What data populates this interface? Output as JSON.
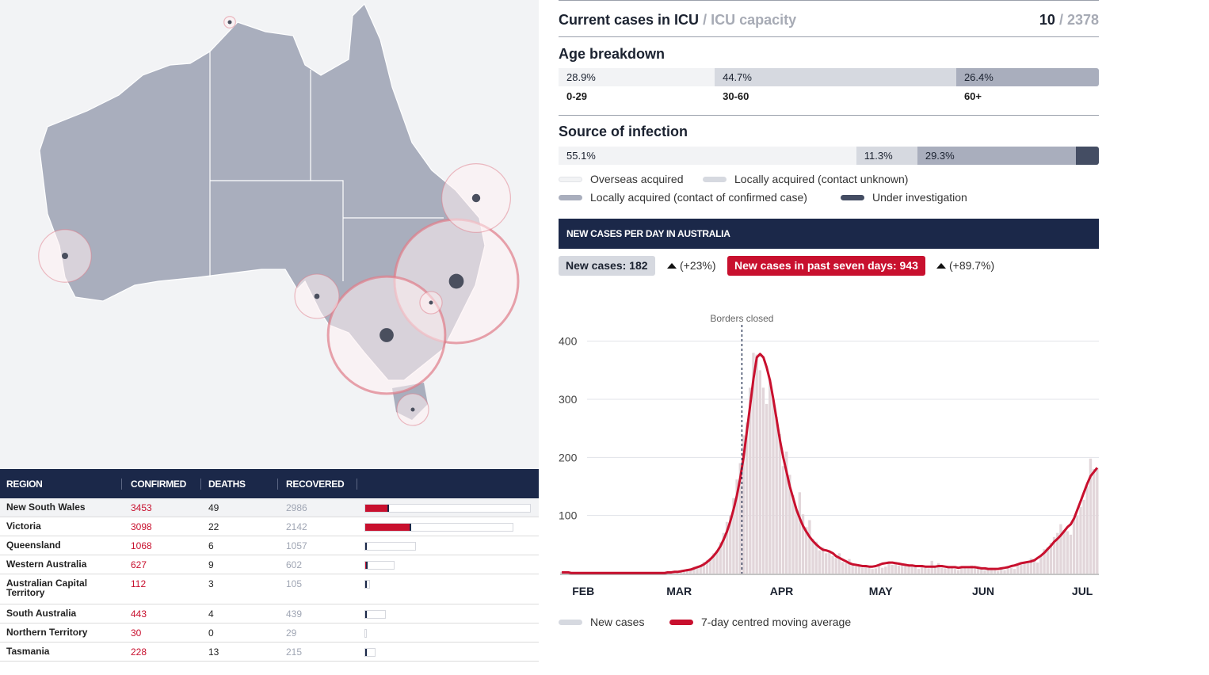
{
  "map": {
    "markers": [
      {
        "region": "Northern Territory",
        "cases": 30
      },
      {
        "region": "Western Australia",
        "cases": 627
      },
      {
        "region": "Queensland",
        "cases": 1068
      },
      {
        "region": "South Australia",
        "cases": 443
      },
      {
        "region": "New South Wales",
        "cases": 3453
      },
      {
        "region": "Australian Capital Territory",
        "cases": 112
      },
      {
        "region": "Victoria",
        "cases": 3098
      },
      {
        "region": "Tasmania",
        "cases": 228
      }
    ],
    "land_color": "#a9aebd",
    "bubble_color": "#e07c89"
  },
  "table": {
    "headers": {
      "region": "REGION",
      "confirmed": "CONFIRMED",
      "deaths": "DEATHS",
      "recovered": "RECOVERED"
    },
    "rows": [
      {
        "region": "New South Wales",
        "confirmed": "3453",
        "deaths": "49",
        "recovered": "2986",
        "active_fraction": 0.135,
        "death_fraction": 0.014
      },
      {
        "region": "Victoria",
        "confirmed": "3098",
        "deaths": "22",
        "recovered": "2142",
        "active_fraction": 0.302,
        "death_fraction": 0.007
      },
      {
        "region": "Queensland",
        "confirmed": "1068",
        "deaths": "6",
        "recovered": "1057",
        "active_fraction": 0.005,
        "death_fraction": 0.006
      },
      {
        "region": "Western Australia",
        "confirmed": "627",
        "deaths": "9",
        "recovered": "602",
        "active_fraction": 0.026,
        "death_fraction": 0.014
      },
      {
        "region": "Australian Capital Territory",
        "confirmed": "112",
        "deaths": "3",
        "recovered": "105",
        "active_fraction": 0.036,
        "death_fraction": 0.027
      },
      {
        "region": "South Australia",
        "confirmed": "443",
        "deaths": "4",
        "recovered": "439",
        "active_fraction": 0.0,
        "death_fraction": 0.009
      },
      {
        "region": "Northern Territory",
        "confirmed": "30",
        "deaths": "0",
        "recovered": "29",
        "active_fraction": 0.033,
        "death_fraction": 0.0
      },
      {
        "region": "Tasmania",
        "confirmed": "228",
        "deaths": "13",
        "recovered": "215",
        "active_fraction": 0.0,
        "death_fraction": 0.057
      }
    ]
  },
  "icu": {
    "label": "Current cases in ICU",
    "sublabel": "/ ICU capacity",
    "value": "10",
    "capacity": "/ 2378"
  },
  "age": {
    "title": "Age breakdown",
    "segments": [
      {
        "label": "0-29",
        "pct": "28.9%",
        "value": 28.9,
        "color": "#f2f3f5"
      },
      {
        "label": "30-60",
        "pct": "44.7%",
        "value": 44.7,
        "color": "#d6d9e0"
      },
      {
        "label": "60+",
        "pct": "26.4%",
        "value": 26.4,
        "color": "#a9aebd"
      }
    ]
  },
  "source": {
    "title": "Source of infection",
    "segments": [
      {
        "label": "Overseas acquired",
        "pct": "55.1%",
        "value": 55.1,
        "color": "#f2f3f5"
      },
      {
        "label": "Locally acquired (contact unknown)",
        "pct": "11.3%",
        "value": 11.3,
        "color": "#d6d9e0"
      },
      {
        "label": "Locally acquired (contact of confirmed case)",
        "pct": "29.3%",
        "value": 29.3,
        "color": "#a9aebd"
      },
      {
        "label": "Under investigation",
        "pct": "",
        "value": 4.3,
        "color": "#444d63"
      }
    ]
  },
  "chart_header": "NEW CASES PER DAY IN AUSTRALIA",
  "stats": {
    "new_cases": "New cases: 182",
    "new_cases_change": "(+23%)",
    "seven_day": "New cases in past seven days: 943",
    "seven_day_change": "(+89.7%)"
  },
  "chart_data": {
    "type": "bar",
    "annotation": "Borders closed",
    "annotation_date": "2020-03-20",
    "x_ticks": [
      "FEB",
      "MAR",
      "APR",
      "MAY",
      "JUN",
      "JUL"
    ],
    "y_ticks": [
      100,
      200,
      300,
      400
    ],
    "ylim": [
      0,
      450
    ],
    "x_start": "2020-01-25",
    "series": [
      {
        "name": "New cases",
        "color": "#d6d9e0",
        "values": [
          3,
          1,
          0,
          2,
          1,
          1,
          2,
          0,
          1,
          2,
          0,
          1,
          0,
          1,
          0,
          2,
          1,
          0,
          1,
          1,
          0,
          0,
          2,
          1,
          0,
          1,
          2,
          0,
          1,
          0,
          2,
          1,
          3,
          2,
          4,
          3,
          2,
          5,
          8,
          6,
          12,
          10,
          15,
          20,
          23,
          27,
          35,
          40,
          54,
          70,
          89,
          100,
          130,
          162,
          190,
          238,
          260,
          320,
          380,
          377,
          350,
          320,
          292,
          335,
          300,
          270,
          240,
          185,
          210,
          170,
          135,
          110,
          140,
          102,
          80,
          92,
          60,
          55,
          40,
          45,
          35,
          38,
          30,
          27,
          35,
          20,
          18,
          25,
          14,
          12,
          15,
          10,
          11,
          12,
          8,
          9,
          14,
          10,
          12,
          21,
          15,
          20,
          14,
          18,
          13,
          16,
          12,
          11,
          8,
          14,
          10,
          9,
          22,
          11,
          18,
          10,
          9,
          13,
          10,
          8,
          6,
          10,
          11,
          9,
          14,
          12,
          13,
          9,
          6,
          8,
          10,
          6,
          4,
          8,
          6,
          9,
          10,
          8,
          14,
          17,
          20,
          21,
          26,
          24,
          19,
          30,
          42,
          45,
          53,
          63,
          70,
          85,
          75,
          73,
          67,
          95,
          100,
          115,
          127,
          150,
          198,
          180,
          182
        ]
      },
      {
        "name": "7-day centred moving average",
        "color": "#c8102e",
        "values": [
          2,
          2,
          2,
          1,
          1,
          1,
          1,
          1,
          1,
          1,
          1,
          1,
          1,
          1,
          1,
          1,
          1,
          1,
          1,
          1,
          1,
          1,
          1,
          1,
          1,
          1,
          1,
          1,
          1,
          1,
          1,
          1,
          2,
          2,
          3,
          3,
          4,
          5,
          6,
          7,
          9,
          11,
          13,
          16,
          20,
          25,
          31,
          38,
          47,
          59,
          73,
          90,
          111,
          135,
          165,
          200,
          245,
          290,
          335,
          372,
          378,
          372,
          355,
          332,
          300,
          265,
          230,
          200,
          175,
          150,
          130,
          110,
          95,
          82,
          72,
          63,
          56,
          50,
          45,
          41,
          40,
          38,
          35,
          30,
          27,
          24,
          21,
          18,
          16,
          15,
          14,
          13,
          13,
          12,
          12,
          13,
          15,
          17,
          18,
          19,
          19,
          18,
          17,
          16,
          15,
          14,
          14,
          13,
          13,
          13,
          12,
          12,
          12,
          12,
          13,
          13,
          12,
          11,
          11,
          11,
          10,
          11,
          11,
          11,
          11,
          11,
          10,
          9,
          9,
          8,
          8,
          8,
          8,
          9,
          10,
          11,
          13,
          14,
          16,
          18,
          19,
          20,
          21,
          23,
          27,
          31,
          36,
          42,
          48,
          55,
          60,
          66,
          73,
          80,
          85,
          95,
          110,
          125,
          140,
          155,
          168,
          175,
          182
        ]
      }
    ]
  }
}
